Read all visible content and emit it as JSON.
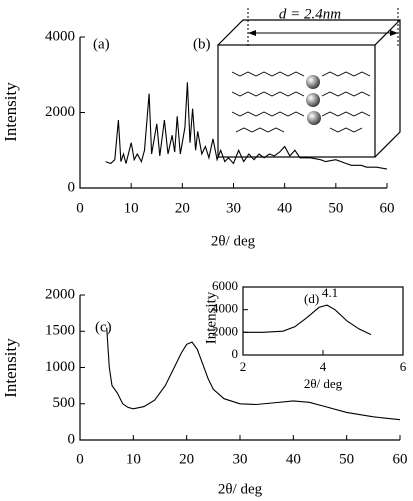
{
  "chart_data": [
    {
      "type": "line",
      "label": "(a)",
      "x_label": "2θ/ deg",
      "y_label": "Intensity",
      "color": "#000000",
      "xlim": [
        0,
        60
      ],
      "xticks": [
        0,
        10,
        20,
        30,
        40,
        50,
        60
      ],
      "ylim": [
        0,
        4000
      ],
      "yticks": [
        0,
        2000,
        4000
      ],
      "x": [
        5,
        6,
        6.8,
        7.5,
        8,
        8.5,
        9,
        10,
        10.6,
        11.2,
        12,
        12.6,
        13.5,
        14,
        15,
        15.6,
        16.5,
        17.2,
        18,
        18.5,
        19,
        19.6,
        20.5,
        21,
        21.5,
        22,
        22.6,
        23,
        23.8,
        24.5,
        25.2,
        26,
        26.8,
        27.5,
        28.3,
        29,
        30,
        31,
        32,
        33,
        34,
        35,
        36,
        37,
        38,
        39,
        40,
        41,
        42,
        43,
        45,
        47,
        48,
        50,
        52,
        53,
        55,
        56,
        58,
        60
      ],
      "values": [
        700,
        650,
        750,
        1800,
        700,
        900,
        650,
        1200,
        750,
        900,
        700,
        1000,
        2500,
        900,
        1700,
        850,
        1800,
        900,
        1400,
        950,
        1900,
        900,
        1600,
        2800,
        1200,
        2100,
        1000,
        1500,
        900,
        1100,
        800,
        1300,
        750,
        1000,
        700,
        800,
        650,
        1000,
        700,
        900,
        750,
        900,
        800,
        900,
        850,
        950,
        1100,
        850,
        1000,
        800,
        800,
        750,
        700,
        750,
        650,
        600,
        600,
        550,
        550,
        500
      ]
    },
    {
      "type": "line",
      "label": "(c)",
      "x_label": "2θ/ deg",
      "y_label": "Intensity",
      "color": "#000000",
      "xlim": [
        0,
        60
      ],
      "xticks": [
        0,
        10,
        20,
        30,
        40,
        50,
        60
      ],
      "ylim": [
        0,
        2000
      ],
      "yticks": [
        0,
        500,
        1000,
        1500,
        2000
      ],
      "x": [
        5,
        5.5,
        6,
        7,
        8,
        9,
        10,
        12,
        14,
        16,
        18,
        19,
        20,
        21,
        22,
        23,
        24,
        25,
        27,
        30,
        33,
        36,
        40,
        43,
        46,
        50,
        55,
        60
      ],
      "values": [
        1550,
        1000,
        750,
        650,
        500,
        450,
        430,
        460,
        550,
        750,
        1050,
        1200,
        1320,
        1350,
        1250,
        1050,
        850,
        700,
        570,
        500,
        490,
        510,
        540,
        520,
        460,
        380,
        320,
        280
      ]
    },
    {
      "type": "line",
      "label": "(d)",
      "x_label": "2θ/ deg",
      "y_label": "Intensity",
      "annotation": "4.1",
      "color": "#000000",
      "xlim": [
        2,
        6
      ],
      "xticks": [
        2,
        4,
        6
      ],
      "ylim": [
        0,
        6000
      ],
      "yticks": [
        0,
        2000,
        4000,
        6000
      ],
      "x": [
        2,
        2.5,
        3,
        3.3,
        3.6,
        3.9,
        4.1,
        4.3,
        4.6,
        4.9,
        5.2
      ],
      "values": [
        2000,
        2000,
        2100,
        2500,
        3300,
        4200,
        4400,
        4000,
        3000,
        2300,
        1800
      ]
    }
  ],
  "diagram": {
    "label": "(b)",
    "dimension": "d = 2.4nm"
  }
}
